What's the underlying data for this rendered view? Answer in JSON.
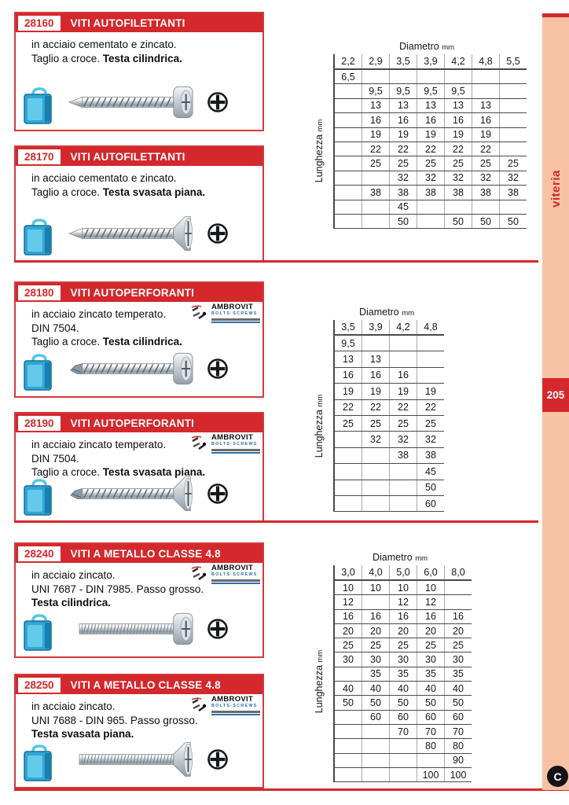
{
  "page": {
    "sidebar_label": "viteria",
    "page_number": "205",
    "corner_logo_letter": "C",
    "colors": {
      "red": "#d4282c",
      "salmon": "#f7c2a3",
      "brand_blue": "#2e6fb4",
      "bag_blue": "#2ea7d8"
    }
  },
  "brand": {
    "name": "AMBROVIT",
    "subtitle": "BOLTS·SCREWS"
  },
  "products": [
    {
      "code": "28160",
      "title": "VITI AUTOFILETTANTI",
      "line1_plain": "in acciaio cementato e zincato.",
      "line1_bold": "",
      "line2_plain": "Taglio a croce. ",
      "line2_bold": "Testa cilindrica.",
      "line3_plain": "",
      "line3_bold": ""
    },
    {
      "code": "28170",
      "title": "VITI AUTOFILETTANTI",
      "line1_plain": "in acciaio cementato e zincato.",
      "line1_bold": "",
      "line2_plain": "Taglio a croce. ",
      "line2_bold": "Testa svasata piana.",
      "line3_plain": "",
      "line3_bold": ""
    },
    {
      "code": "28180",
      "title": "VITI AUTOPERFORANTI",
      "line1_plain": "in acciaio zincato temperato.",
      "line1_bold": "",
      "line2_plain": "DIN 7504.",
      "line2_bold": "",
      "line3_plain": "Taglio a croce. ",
      "line3_bold": "Testa cilindrica."
    },
    {
      "code": "28190",
      "title": "VITI AUTOPERFORANTI",
      "line1_plain": "in acciaio zincato temperato.",
      "line1_bold": "",
      "line2_plain": "DIN 7504.",
      "line2_bold": "",
      "line3_plain": "Taglio a croce. ",
      "line3_bold": "Testa svasata piana."
    },
    {
      "code": "28240",
      "title": "VITI A METALLO CLASSE 4.8",
      "line1_plain": "in acciaio zincato.",
      "line1_bold": "",
      "line2_plain": "UNI 7687 - DIN 7985. Passo grosso.",
      "line2_bold": "",
      "line3_plain": "",
      "line3_bold": "Testa cilindrica."
    },
    {
      "code": "28250",
      "title": "VITI A METALLO CLASSE 4.8",
      "line1_plain": "in acciaio zincato.",
      "line1_bold": "",
      "line2_plain": "UNI 7688 - DIN 965. Passo grosso.",
      "line2_bold": "",
      "line3_plain": "",
      "line3_bold": "Testa svasata piana."
    }
  ],
  "tables": [
    {
      "title_main": "Diametro",
      "title_unit": "mm",
      "axis_main": "Lunghezza",
      "axis_unit": "mm",
      "columns": [
        "2,2",
        "2,9",
        "3,5",
        "3,9",
        "4,2",
        "4,8",
        "5,5"
      ],
      "rows": [
        [
          "6,5",
          "",
          "",
          "",
          "",
          "",
          ""
        ],
        [
          "",
          "9,5",
          "9,5",
          "9,5",
          "9,5",
          "",
          ""
        ],
        [
          "",
          "13",
          "13",
          "13",
          "13",
          "13",
          ""
        ],
        [
          "",
          "16",
          "16",
          "16",
          "16",
          "16",
          ""
        ],
        [
          "",
          "19",
          "19",
          "19",
          "19",
          "19",
          ""
        ],
        [
          "",
          "22",
          "22",
          "22",
          "22",
          "22",
          ""
        ],
        [
          "",
          "25",
          "25",
          "25",
          "25",
          "25",
          "25"
        ],
        [
          "",
          "",
          "32",
          "32",
          "32",
          "32",
          "32"
        ],
        [
          "",
          "38",
          "38",
          "38",
          "38",
          "38",
          "38"
        ],
        [
          "",
          "",
          "45",
          "",
          "",
          "",
          ""
        ],
        [
          "",
          "",
          "50",
          "",
          "50",
          "50",
          "50"
        ]
      ]
    },
    {
      "title_main": "Diametro",
      "title_unit": "mm",
      "axis_main": "Lunghezza",
      "axis_unit": "mm",
      "columns": [
        "3,5",
        "3,9",
        "4,2",
        "4,8"
      ],
      "rows": [
        [
          "9,5",
          "",
          "",
          ""
        ],
        [
          "13",
          "13",
          "",
          ""
        ],
        [
          "16",
          "16",
          "16",
          ""
        ],
        [
          "19",
          "19",
          "19",
          "19"
        ],
        [
          "22",
          "22",
          "22",
          "22"
        ],
        [
          "25",
          "25",
          "25",
          "25"
        ],
        [
          "",
          "32",
          "32",
          "32"
        ],
        [
          "",
          "",
          "38",
          "38"
        ],
        [
          "",
          "",
          "",
          "45"
        ],
        [
          "",
          "",
          "",
          "50"
        ],
        [
          "",
          "",
          "",
          "60"
        ]
      ]
    },
    {
      "title_main": "Diametro",
      "title_unit": "mm",
      "axis_main": "Lunghezza",
      "axis_unit": "mm",
      "columns": [
        "3,0",
        "4,0",
        "5,0",
        "6,0",
        "8,0"
      ],
      "rows": [
        [
          "10",
          "10",
          "10",
          "10",
          ""
        ],
        [
          "12",
          "",
          "12",
          "12",
          ""
        ],
        [
          "16",
          "16",
          "16",
          "16",
          "16"
        ],
        [
          "20",
          "20",
          "20",
          "20",
          "20"
        ],
        [
          "25",
          "25",
          "25",
          "25",
          "25"
        ],
        [
          "30",
          "30",
          "30",
          "30",
          "30"
        ],
        [
          "",
          "35",
          "35",
          "35",
          "35"
        ],
        [
          "40",
          "40",
          "40",
          "40",
          "40"
        ],
        [
          "50",
          "50",
          "50",
          "50",
          "50"
        ],
        [
          "",
          "60",
          "60",
          "60",
          "60"
        ],
        [
          "",
          "",
          "70",
          "70",
          "70"
        ],
        [
          "",
          "",
          "",
          "80",
          "80"
        ],
        [
          "",
          "",
          "",
          "",
          "90"
        ],
        [
          "",
          "",
          "",
          "100",
          "100"
        ]
      ]
    }
  ]
}
